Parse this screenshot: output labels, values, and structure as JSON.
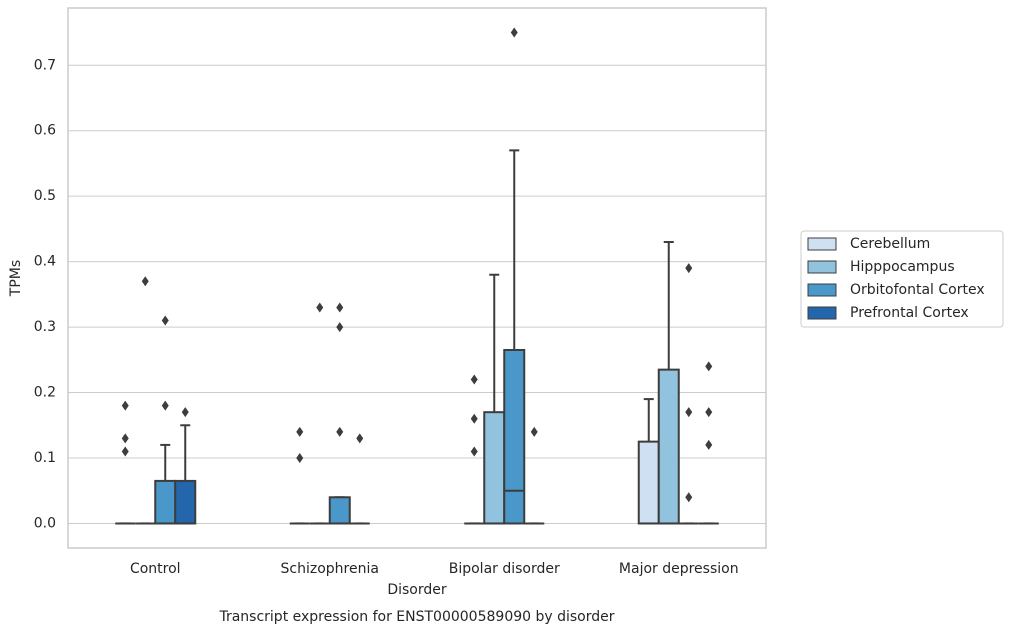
{
  "chart_data": {
    "type": "box",
    "title": "Transcript expression for ENST00000589090 by disorder",
    "xlabel": "Disorder",
    "ylabel": "TPMs",
    "categories": [
      "Control",
      "Schizophrenia",
      "Bipolar disorder",
      "Major depression"
    ],
    "ylim": [
      -0.0375,
      0.7875
    ],
    "yticks": [
      {
        "value": 0,
        "label": "0.0"
      },
      0.1,
      0.2,
      0.3,
      0.4,
      0.5,
      0.6,
      0.7
    ],
    "grid": true,
    "legend": "right",
    "series": [
      {
        "name": "Cerebellum",
        "color": "#cee0f2",
        "boxes": [
          {
            "whislo": 0,
            "q1": 0,
            "median": 0,
            "q3": 0,
            "whishi": 0,
            "fliers": [
              0.18,
              0.13,
              0.11
            ]
          },
          {
            "whislo": 0,
            "q1": 0,
            "median": 0,
            "q3": 0,
            "whishi": 0,
            "fliers": [
              0.14,
              0.1
            ]
          },
          {
            "whislo": 0,
            "q1": 0,
            "median": 0,
            "q3": 0,
            "whishi": 0,
            "fliers": [
              0.22,
              0.16,
              0.11
            ]
          },
          {
            "whislo": 0,
            "q1": 0,
            "median": 0,
            "q3": 0.125,
            "whishi": 0.19,
            "fliers": []
          }
        ]
      },
      {
        "name": "Hipppocampus",
        "color": "#91c3de",
        "boxes": [
          {
            "whislo": 0,
            "q1": 0,
            "median": 0,
            "q3": 0,
            "whishi": 0,
            "fliers": [
              0.37
            ]
          },
          {
            "whislo": 0,
            "q1": 0,
            "median": 0,
            "q3": 0,
            "whishi": 0,
            "fliers": [
              0.33
            ]
          },
          {
            "whislo": 0,
            "q1": 0,
            "median": 0,
            "q3": 0.17,
            "whishi": 0.38,
            "fliers": []
          },
          {
            "whislo": 0,
            "q1": 0,
            "median": 0,
            "q3": 0.235,
            "whishi": 0.43,
            "fliers": []
          }
        ]
      },
      {
        "name": "Orbitofontal Cortex",
        "color": "#4a98c9",
        "boxes": [
          {
            "whislo": 0,
            "q1": 0,
            "median": 0,
            "q3": 0.065,
            "whishi": 0.12,
            "fliers": [
              0.31,
              0.18
            ]
          },
          {
            "whislo": 0,
            "q1": 0,
            "median": 0,
            "q3": 0.04,
            "whishi": 0.04,
            "fliers": [
              0.33,
              0.3,
              0.14
            ]
          },
          {
            "whislo": 0,
            "q1": 0,
            "median": 0.05,
            "q3": 0.265,
            "whishi": 0.57,
            "fliers": [
              0.75
            ]
          },
          {
            "whislo": 0,
            "q1": 0,
            "median": 0,
            "q3": 0,
            "whishi": 0,
            "fliers": [
              0.39,
              0.17,
              0.04
            ]
          }
        ]
      },
      {
        "name": "Prefrontal Cortex",
        "color": "#2366ac",
        "boxes": [
          {
            "whislo": 0,
            "q1": 0,
            "median": 0,
            "q3": 0.065,
            "whishi": 0.15,
            "fliers": [
              0.17
            ]
          },
          {
            "whislo": 0,
            "q1": 0,
            "median": 0,
            "q3": 0,
            "whishi": 0,
            "fliers": [
              0.13
            ]
          },
          {
            "whislo": 0,
            "q1": 0,
            "median": 0,
            "q3": 0,
            "whishi": 0,
            "fliers": [
              0.14
            ]
          },
          {
            "whislo": 0,
            "q1": 0,
            "median": 0,
            "q3": 0,
            "whishi": 0,
            "fliers": [
              0.24,
              0.17,
              0.12
            ]
          }
        ]
      }
    ]
  }
}
